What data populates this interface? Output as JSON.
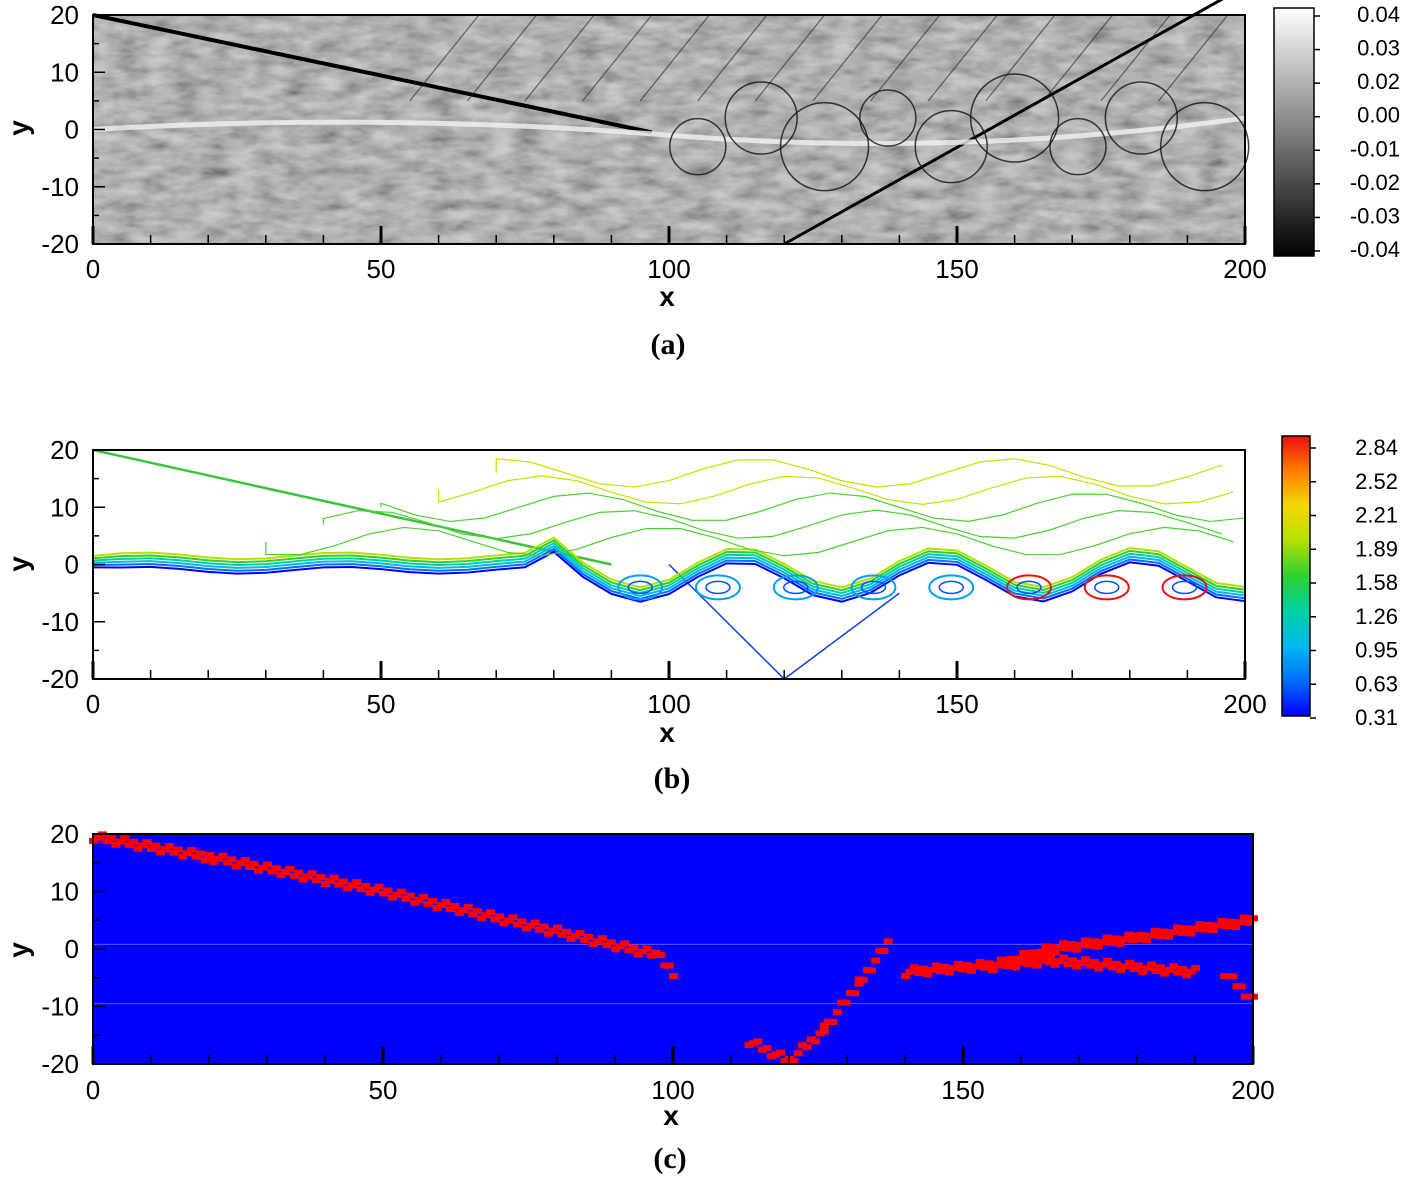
{
  "chart_data": [
    {
      "type": "heatmap",
      "panel_label": "(a)",
      "xlabel": "x",
      "ylabel": "y",
      "xlim": [
        0,
        200
      ],
      "ylim": [
        -20,
        20
      ],
      "xticks": [
        0,
        50,
        100,
        150,
        200
      ],
      "yticks": [
        20,
        10,
        0,
        -10,
        -20
      ],
      "colormap": "grayscale",
      "colorbar_levels": [
        "0.04",
        "0.03",
        "0.02",
        "0.00",
        "-0.01",
        "-0.02",
        "-0.03",
        "-0.04"
      ],
      "features": {
        "incident_shock": [
          [
            0,
            20
          ],
          [
            97,
            -0.5
          ]
        ],
        "reflected_shock": [
          [
            120,
            -20
          ],
          [
            200,
            25
          ]
        ],
        "reflection_point": [
          120,
          -20
        ]
      }
    },
    {
      "type": "heatmap",
      "panel_label": "(b)",
      "xlabel": "x",
      "ylabel": "y",
      "xlim": [
        0,
        200
      ],
      "ylim": [
        -20,
        20
      ],
      "xticks": [
        0,
        50,
        100,
        150,
        200
      ],
      "yticks": [
        20,
        10,
        0,
        -10,
        -20
      ],
      "colormap": "jet",
      "colorbar_levels": [
        "2.84",
        "2.52",
        "2.21",
        "1.89",
        "1.58",
        "1.26",
        "0.95",
        "0.63",
        "0.31"
      ],
      "features": {
        "incident_shock": [
          [
            0,
            20
          ],
          [
            90,
            0
          ]
        ],
        "reflected_shock": [
          [
            100,
            0
          ],
          [
            120,
            -20
          ],
          [
            140,
            -5
          ]
        ]
      }
    },
    {
      "type": "heatmap",
      "panel_label": "(c)",
      "xlabel": "x",
      "ylabel": "y",
      "xlim": [
        0,
        200
      ],
      "ylim": [
        -20,
        20
      ],
      "xticks": [
        0,
        50,
        100,
        150,
        200
      ],
      "yticks": [
        20,
        10,
        0,
        -10,
        -20
      ],
      "colors": {
        "background": "#0000ff",
        "flagged": "#ff0000"
      },
      "flagged_paths": [
        [
          [
            0,
            19.5
          ],
          [
            20,
            16
          ],
          [
            50,
            10
          ],
          [
            80,
            3
          ],
          [
            97,
            -1
          ],
          [
            100,
            -4
          ]
        ],
        [
          [
            113,
            -16
          ],
          [
            120,
            -19.5
          ],
          [
            126,
            -14
          ],
          [
            132,
            -6
          ],
          [
            137,
            1
          ]
        ],
        [
          [
            155,
            -3
          ],
          [
            165,
            0
          ],
          [
            180,
            2
          ],
          [
            200,
            5
          ]
        ],
        [
          [
            140,
            -4
          ],
          [
            165,
            -2
          ],
          [
            190,
            -4
          ]
        ],
        [
          [
            195,
            -4
          ],
          [
            200,
            -9
          ]
        ]
      ]
    }
  ]
}
